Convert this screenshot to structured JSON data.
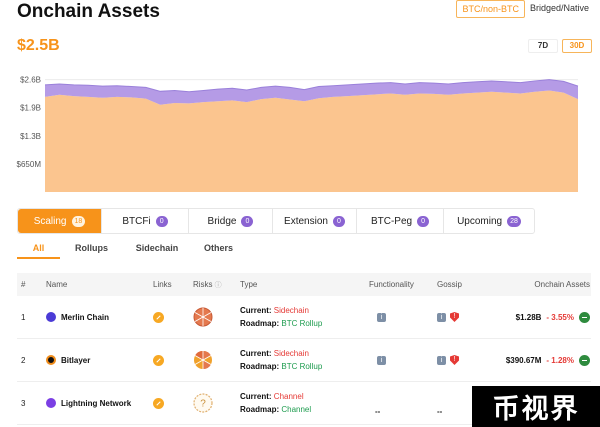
{
  "header": {
    "title": "Onchain Assets",
    "toggle": [
      "BTC/non-BTC",
      "Bridged/Native"
    ],
    "toggle_active": 0,
    "total": "$2.5B",
    "ranges": [
      "7D",
      "30D"
    ],
    "range_active": 1
  },
  "chart_data": {
    "type": "area",
    "yticks": [
      "$2.6B",
      "$1.9B",
      "$1.3B",
      "$650M"
    ],
    "ytick_values": [
      2.6,
      1.95,
      1.3,
      0.65
    ],
    "ylim": [
      0,
      2.8
    ],
    "colors": {
      "lower": "#fbc58f",
      "upper": "#b59be6",
      "line": "#9a80da"
    },
    "series": [
      {
        "values": [
          2.2,
          2.25,
          2.22,
          2.2,
          2.18,
          2.2,
          2.19,
          2.16,
          2.02,
          2.06,
          2.05,
          2.08,
          2.1,
          2.12,
          2.08,
          2.15,
          2.18,
          2.14,
          2.1,
          2.17,
          2.2,
          2.22,
          2.24,
          2.26,
          2.28,
          2.25,
          2.28,
          2.27,
          2.25,
          2.28,
          2.3,
          2.32,
          2.3,
          2.28,
          2.32,
          2.35,
          2.3,
          2.15
        ]
      },
      {
        "values": [
          2.48,
          2.5,
          2.48,
          2.47,
          2.45,
          2.46,
          2.44,
          2.42,
          2.33,
          2.35,
          2.32,
          2.35,
          2.38,
          2.4,
          2.36,
          2.42,
          2.45,
          2.42,
          2.37,
          2.44,
          2.46,
          2.48,
          2.5,
          2.52,
          2.53,
          2.5,
          2.53,
          2.52,
          2.5,
          2.53,
          2.55,
          2.57,
          2.55,
          2.53,
          2.57,
          2.6,
          2.56,
          2.45
        ]
      }
    ]
  },
  "categories": [
    {
      "label": "Scaling",
      "count": "18",
      "active": true
    },
    {
      "label": "BTCFi",
      "count": "0"
    },
    {
      "label": "Bridge",
      "count": "0"
    },
    {
      "label": "Extension",
      "count": "0"
    },
    {
      "label": "BTC-Peg",
      "count": "0"
    },
    {
      "label": "Upcoming",
      "count": "28"
    }
  ],
  "subtabs": [
    "All",
    "Rollups",
    "Sidechain",
    "Others"
  ],
  "table": {
    "headers": {
      "num": "#",
      "name": "Name",
      "links": "Links",
      "risks": "Risks",
      "type": "Type",
      "functionality": "Functionality",
      "gossip": "Gossip",
      "assets": "Onchain Assets"
    },
    "current_label": "Current:",
    "roadmap_label": "Roadmap:",
    "rows": [
      {
        "num": "1",
        "name": "Merlin Chain",
        "current": "Sidechain",
        "roadmap": "BTC Rollup",
        "functionality": "i",
        "gossip": true,
        "value": "$1.28B",
        "change": "- 3.55%"
      },
      {
        "num": "2",
        "name": "Bitlayer",
        "current": "Sidechain",
        "roadmap": "BTC Rollup",
        "functionality": "i",
        "gossip": true,
        "value": "$390.67M",
        "change": "- 1.28%"
      },
      {
        "num": "3",
        "name": "Lightning Network",
        "current": "Channel",
        "roadmap": "Channel",
        "functionality": "--",
        "gossip_text": "--",
        "value": "",
        "change": ""
      }
    ]
  },
  "watermark": "币视界"
}
